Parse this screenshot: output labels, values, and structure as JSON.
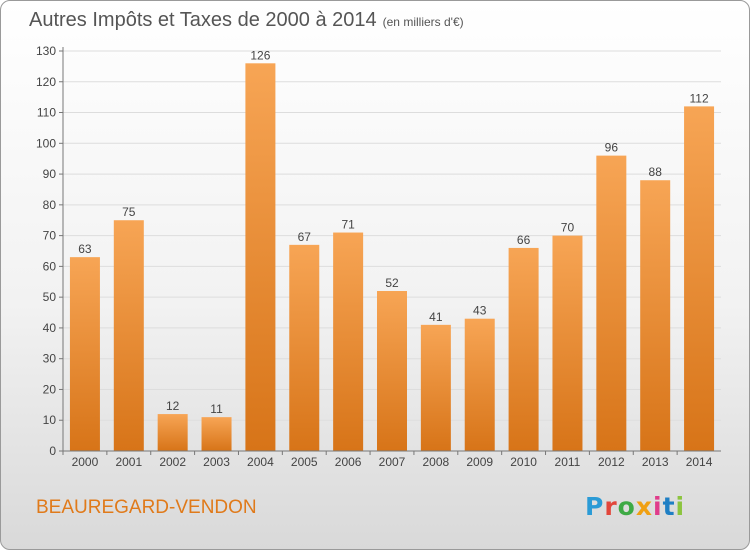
{
  "header": {
    "title": "Autres Impôts et Taxes de 2000 à 2014",
    "subtitle": "(en milliers d'€)"
  },
  "footer": {
    "commune": "BEAUREGARD-VENDON",
    "logo_letters": [
      "P",
      "r",
      "o",
      "x",
      "i",
      "t",
      "i"
    ]
  },
  "colors": {
    "bar_light": "#f7a555",
    "bar_dark": "#d77418",
    "grid": "#dddddd",
    "axis": "#777777",
    "text": "#444444"
  },
  "chart_data": {
    "type": "bar",
    "title": "Autres Impôts et Taxes de 2000 à 2014",
    "subtitle": "(en milliers d'€)",
    "categories": [
      "2000",
      "2001",
      "2002",
      "2003",
      "2004",
      "2005",
      "2006",
      "2007",
      "2008",
      "2009",
      "2010",
      "2011",
      "2012",
      "2013",
      "2014"
    ],
    "values": [
      63,
      75,
      12,
      11,
      126,
      67,
      71,
      52,
      41,
      43,
      66,
      70,
      96,
      88,
      112
    ],
    "ylim": [
      0,
      130
    ],
    "yticks": [
      0,
      10,
      20,
      30,
      40,
      50,
      60,
      70,
      80,
      90,
      100,
      110,
      120,
      130
    ],
    "grid": true,
    "data_labels": true
  }
}
